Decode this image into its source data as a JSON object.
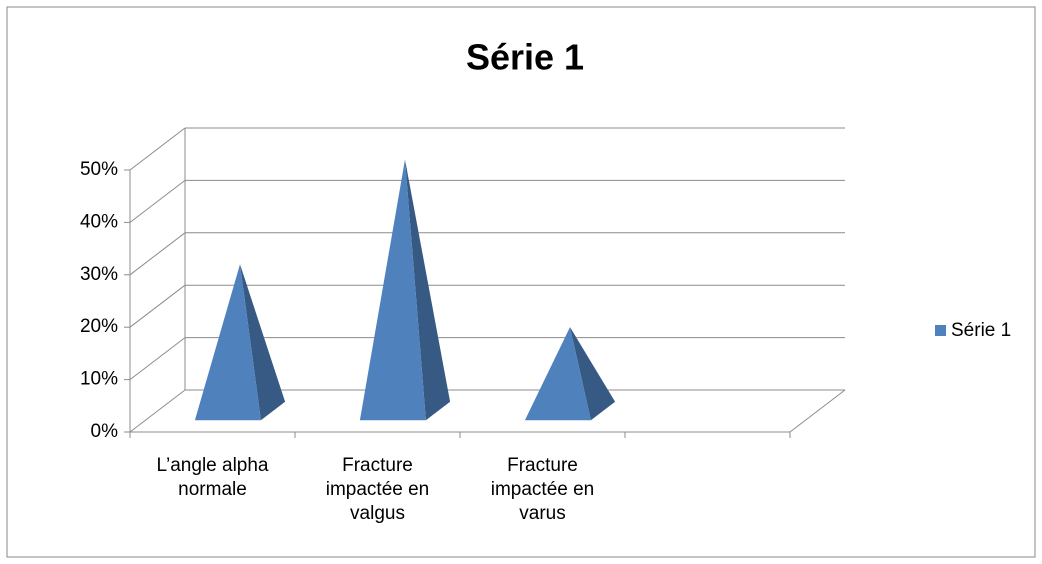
{
  "chart_data": {
    "type": "pyramid3d",
    "title": "Série 1",
    "categories": [
      "L’angle alpha normale",
      "Fracture impactée en valgus",
      "Fracture impactée en varus",
      null
    ],
    "series": [
      {
        "name": "Série 1",
        "color": "#4f81bd",
        "values": [
          28,
          48,
          16,
          null
        ]
      }
    ],
    "ylim": [
      0,
      50
    ],
    "yticks": [
      {
        "value": 0,
        "label": "0%"
      },
      {
        "value": 10,
        "label": "10%"
      },
      {
        "value": 20,
        "label": "20%"
      },
      {
        "value": 30,
        "label": "30%"
      },
      {
        "value": 40,
        "label": "40%"
      },
      {
        "value": 50,
        "label": "50%"
      }
    ],
    "grid": true,
    "legend": "right"
  }
}
